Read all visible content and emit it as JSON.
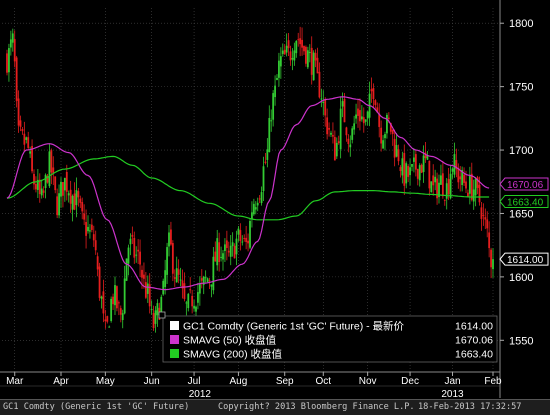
{
  "colors": {
    "background": "#000000",
    "grid": "#4a4a4a",
    "axis_text": "#ffffff",
    "candle_up": "#33cc33",
    "candle_down": "#e61e1e",
    "sma50": "#cc33cc",
    "sma200": "#22cc22",
    "price_tag": "#ffffff"
  },
  "footer": {
    "left": "GC1 Comdty (Generic 1st 'GC' Future)",
    "center": "Copyright? 2013 Bloomberg Finance L.P.",
    "right": "18-Feb-2013 17:32:57"
  },
  "chart_data": {
    "type": "candlestick",
    "ylim": [
      1525,
      1812
    ],
    "xlim": [
      0,
      252
    ],
    "ticks_y": [
      1550,
      1600,
      1650,
      1700,
      1750,
      1800
    ],
    "month_ticks": [
      {
        "x": 4,
        "label": "Mar"
      },
      {
        "x": 28,
        "label": "Apr"
      },
      {
        "x": 51,
        "label": "May"
      },
      {
        "x": 75,
        "label": "Jun"
      },
      {
        "x": 97,
        "label": "Jul"
      },
      {
        "x": 120,
        "label": "Aug"
      },
      {
        "x": 144,
        "label": "Sep"
      },
      {
        "x": 164,
        "label": "Oct"
      },
      {
        "x": 187,
        "label": "Nov"
      },
      {
        "x": 209,
        "label": "Dec"
      },
      {
        "x": 231,
        "label": "Jan"
      },
      {
        "x": 252,
        "label": "Feb"
      }
    ],
    "year_labels": [
      {
        "x": 100,
        "label": "2012"
      },
      {
        "x": 231,
        "label": "2013"
      }
    ],
    "grid": true,
    "legend": {
      "position": "bottom-right",
      "entries": [
        {
          "name": "GC1 Comdty (Generic 1st 'GC' Future) - 最新价",
          "value": "1614.00",
          "swatch": "#ffffff"
        },
        {
          "name": "SMAVG (50) 收盘值",
          "value": "1670.06",
          "swatch": "#cc33cc"
        },
        {
          "name": "SMAVG (200) 收盘值",
          "value": "1663.40",
          "swatch": "#22cc22"
        }
      ]
    },
    "last_price_tags": [
      {
        "value": 1670.06,
        "label": "1670.06",
        "color": "#cc33cc"
      },
      {
        "value": 1663.4,
        "label": "1663.40",
        "color": "#22cc22"
      },
      {
        "value": 1614.0,
        "label": "1614.00",
        "color": "#ffffff"
      }
    ],
    "series": [
      {
        "name": "GC1 Comdty",
        "kind": "close",
        "anchors": [
          [
            0,
            1772
          ],
          [
            3,
            1785
          ],
          [
            6,
            1710
          ],
          [
            10,
            1705
          ],
          [
            14,
            1675
          ],
          [
            18,
            1660
          ],
          [
            22,
            1688
          ],
          [
            26,
            1658
          ],
          [
            30,
            1675
          ],
          [
            36,
            1660
          ],
          [
            40,
            1640
          ],
          [
            45,
            1630
          ],
          [
            48,
            1590
          ],
          [
            51,
            1555
          ],
          [
            55,
            1585
          ],
          [
            59,
            1570
          ],
          [
            63,
            1625
          ],
          [
            68,
            1615
          ],
          [
            72,
            1590
          ],
          [
            76,
            1562
          ],
          [
            80,
            1580
          ],
          [
            84,
            1625
          ],
          [
            88,
            1600
          ],
          [
            93,
            1575
          ],
          [
            97,
            1585
          ],
          [
            100,
            1590
          ],
          [
            105,
            1600
          ],
          [
            110,
            1622
          ],
          [
            115,
            1615
          ],
          [
            120,
            1630
          ],
          [
            124,
            1625
          ],
          [
            128,
            1660
          ],
          [
            131,
            1670
          ],
          [
            134,
            1690
          ],
          [
            138,
            1740
          ],
          [
            142,
            1770
          ],
          [
            146,
            1775
          ],
          [
            150,
            1790
          ],
          [
            154,
            1780
          ],
          [
            158,
            1770
          ],
          [
            162,
            1750
          ],
          [
            166,
            1720
          ],
          [
            170,
            1700
          ],
          [
            174,
            1730
          ],
          [
            178,
            1710
          ],
          [
            182,
            1730
          ],
          [
            186,
            1720
          ],
          [
            190,
            1750
          ],
          [
            194,
            1715
          ],
          [
            198,
            1720
          ],
          [
            202,
            1700
          ],
          [
            206,
            1680
          ],
          [
            209,
            1680
          ],
          [
            213,
            1688
          ],
          [
            217,
            1690
          ],
          [
            221,
            1668
          ],
          [
            225,
            1675
          ],
          [
            228,
            1670
          ],
          [
            231,
            1690
          ],
          [
            234,
            1680
          ],
          [
            238,
            1672
          ],
          [
            242,
            1670
          ],
          [
            245,
            1660
          ],
          [
            248,
            1640
          ],
          [
            251,
            1614
          ]
        ]
      },
      {
        "name": "SMAVG (50)",
        "kind": "line",
        "anchors": [
          [
            0,
            1662
          ],
          [
            10,
            1700
          ],
          [
            22,
            1705
          ],
          [
            32,
            1698
          ],
          [
            42,
            1680
          ],
          [
            52,
            1645
          ],
          [
            62,
            1610
          ],
          [
            72,
            1592
          ],
          [
            82,
            1590
          ],
          [
            92,
            1592
          ],
          [
            102,
            1595
          ],
          [
            112,
            1598
          ],
          [
            122,
            1610
          ],
          [
            130,
            1628
          ],
          [
            136,
            1660
          ],
          [
            142,
            1700
          ],
          [
            150,
            1720
          ],
          [
            158,
            1735
          ],
          [
            166,
            1740
          ],
          [
            174,
            1742
          ],
          [
            182,
            1740
          ],
          [
            188,
            1735
          ],
          [
            196,
            1725
          ],
          [
            204,
            1710
          ],
          [
            212,
            1700
          ],
          [
            220,
            1695
          ],
          [
            230,
            1688
          ],
          [
            240,
            1680
          ],
          [
            250,
            1670
          ]
        ]
      },
      {
        "name": "SMAVG (200)",
        "kind": "line",
        "anchors": [
          [
            0,
            1662
          ],
          [
            15,
            1675
          ],
          [
            30,
            1685
          ],
          [
            45,
            1693
          ],
          [
            55,
            1695
          ],
          [
            65,
            1688
          ],
          [
            75,
            1678
          ],
          [
            90,
            1668
          ],
          [
            105,
            1658
          ],
          [
            120,
            1648
          ],
          [
            130,
            1645
          ],
          [
            140,
            1645
          ],
          [
            150,
            1648
          ],
          [
            160,
            1660
          ],
          [
            170,
            1667
          ],
          [
            180,
            1668
          ],
          [
            190,
            1668
          ],
          [
            200,
            1667
          ],
          [
            210,
            1666
          ],
          [
            220,
            1665
          ],
          [
            230,
            1664
          ],
          [
            240,
            1663
          ],
          [
            250,
            1663
          ]
        ]
      }
    ]
  }
}
